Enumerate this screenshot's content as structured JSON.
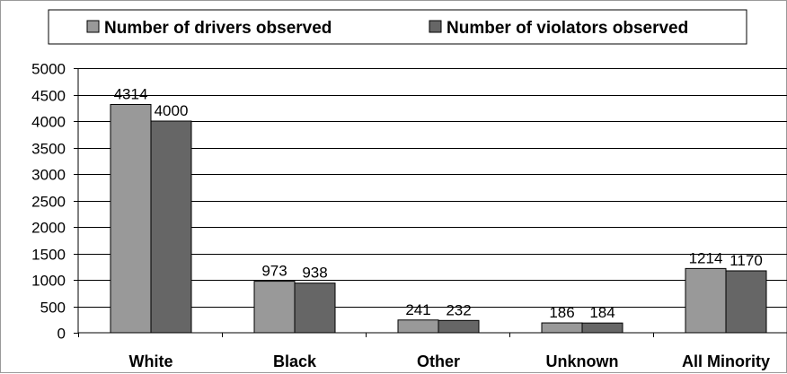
{
  "chart_data": {
    "type": "bar",
    "title": "",
    "xlabel": "",
    "ylabel": "",
    "categories": [
      "White",
      "Black",
      "Other",
      "Unknown",
      "All Minority"
    ],
    "series": [
      {
        "name": "Number of drivers observed",
        "values": [
          4314,
          973,
          241,
          186,
          1214
        ],
        "color": "#999999"
      },
      {
        "name": "Number of violators observed",
        "values": [
          4000,
          938,
          232,
          184,
          1170
        ],
        "color": "#666666"
      }
    ],
    "ylim": [
      0,
      5000
    ],
    "yticks": [
      0,
      500,
      1000,
      1500,
      2000,
      2500,
      3000,
      3500,
      4000,
      4500,
      5000
    ],
    "grid": true,
    "legend_position": "top",
    "data_labels": true
  }
}
